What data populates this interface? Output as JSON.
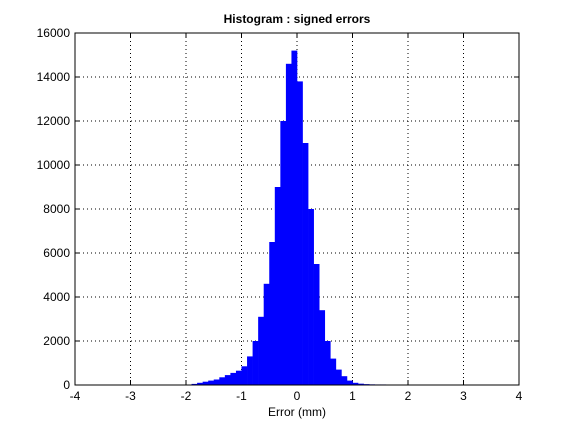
{
  "chart_data": {
    "type": "histogram",
    "title": "Histogram : signed errors",
    "x_label": "Error (mm)",
    "bins": [
      -2.0,
      -1.9,
      -1.8,
      -1.7,
      -1.6,
      -1.5,
      -1.4,
      -1.3,
      -1.2,
      -1.1,
      -1.0,
      -0.9,
      -0.8,
      -0.7,
      -0.6,
      -0.5,
      -0.4,
      -0.3,
      -0.2,
      -0.1,
      0.0,
      0.1,
      0.2,
      0.3,
      0.4,
      0.5,
      0.6,
      0.7,
      0.8,
      0.9,
      1.0,
      1.1,
      1.2,
      1.3,
      1.4,
      1.5,
      1.6,
      1.7,
      1.8,
      1.9,
      2.0,
      2.1,
      2.2,
      2.3,
      2.4,
      2.5,
      2.6,
      2.7,
      2.8
    ],
    "values": [
      20,
      50,
      100,
      150,
      200,
      250,
      350,
      450,
      550,
      650,
      850,
      1300,
      2000,
      3100,
      4600,
      6500,
      9000,
      12000,
      14600,
      15200,
      13800,
      11000,
      8000,
      5500,
      3400,
      2000,
      1200,
      700,
      400,
      200,
      100,
      60,
      40,
      30,
      25,
      25,
      20,
      20,
      20,
      20,
      20,
      20,
      20,
      20,
      20,
      20,
      20,
      20
    ],
    "color": "#0000ff",
    "xlim": [
      -4,
      4
    ],
    "xticks": [
      -4,
      -3,
      -2,
      -1,
      0,
      1,
      2,
      3,
      4
    ],
    "ylim": [
      0,
      16000
    ],
    "yticks": [
      0,
      2000,
      4000,
      6000,
      8000,
      10000,
      12000,
      14000,
      16000
    ],
    "grid": true
  }
}
